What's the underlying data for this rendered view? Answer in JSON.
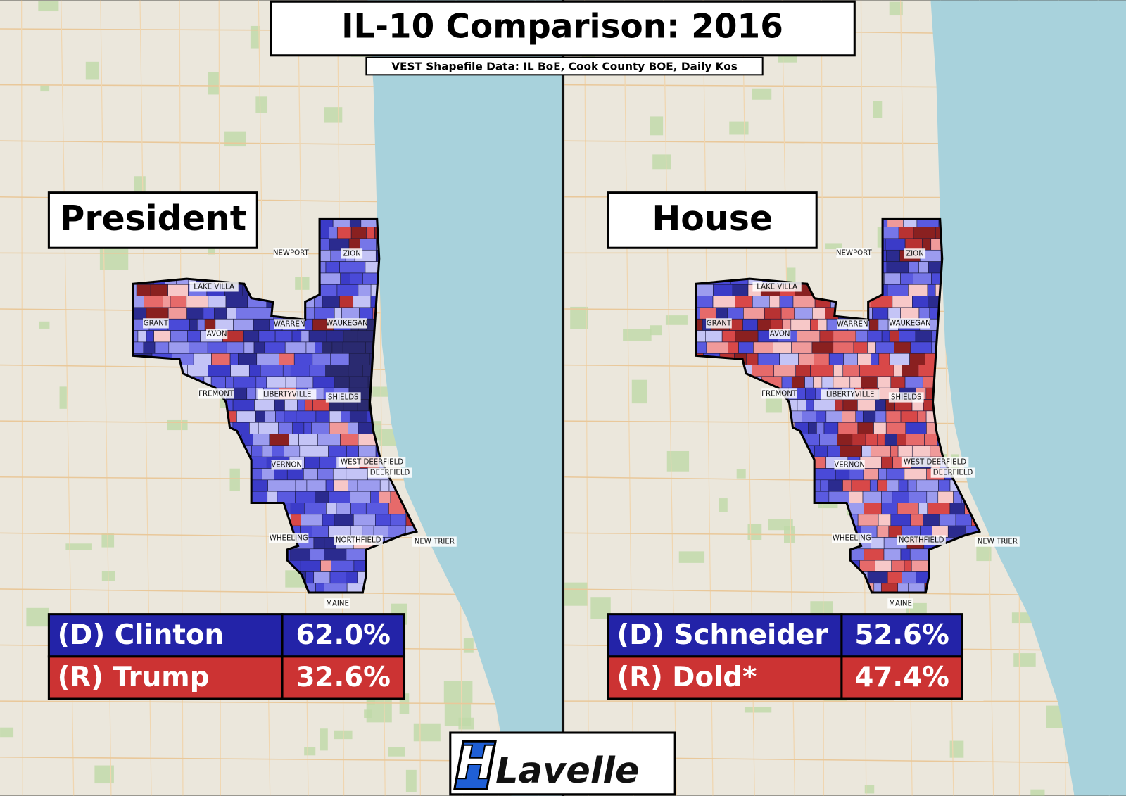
{
  "title": "IL-10 Comparison: 2016",
  "subtitle": "VEST Shapefile Data: IL BoE, Cook County BOE, Daily Kos",
  "places": [
    "NEWPORT",
    "ZION",
    "LAKE VILLA",
    "GRANT",
    "AVON",
    "WARREN",
    "WAUKEGAN",
    "FREMONT",
    "LIBERTYVILLE",
    "SHIELDS",
    "WEST DEERFIELD",
    "DEERFIELD",
    "VERNON",
    "WHEELING",
    "NORTHFIELD",
    "NEW TRIER",
    "MAINE"
  ],
  "panels": [
    {
      "heading": "President",
      "results": [
        {
          "label": "(D) Clinton",
          "value": "62.0%"
        },
        {
          "label": "(R) Trump",
          "value": "32.6%"
        }
      ]
    },
    {
      "heading": "House",
      "results": [
        {
          "label": "(D) Schneider",
          "value": "52.6%"
        },
        {
          "label": "(R) Dold*",
          "value": "47.4%"
        }
      ]
    }
  ],
  "logo": {
    "mark": "H",
    "text": "Lavelle"
  }
}
